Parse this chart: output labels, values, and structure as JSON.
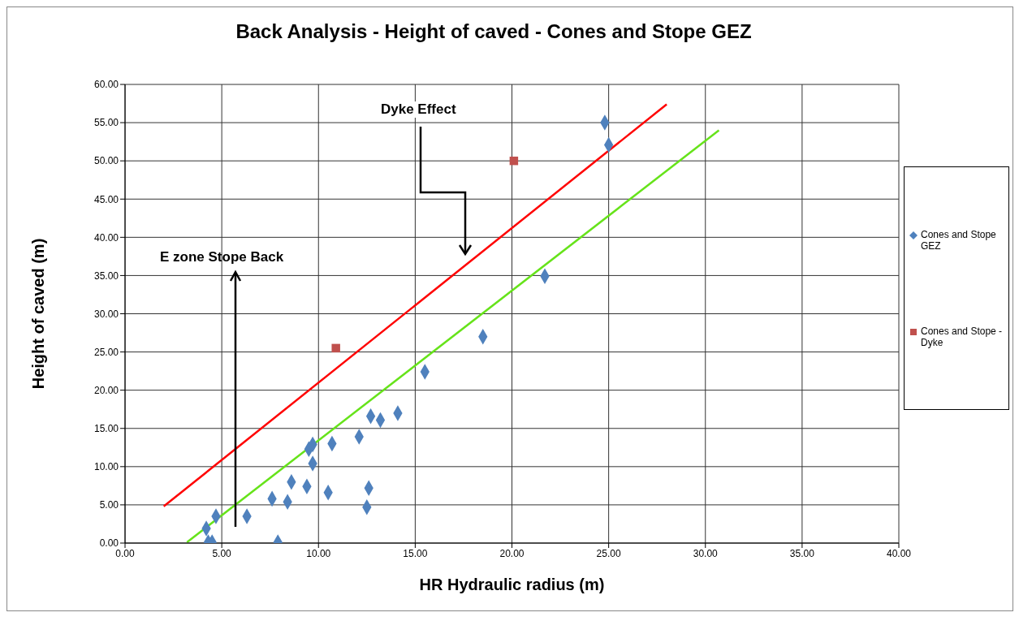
{
  "chart_data": {
    "type": "scatter",
    "title": "Back Analysis - Height of caved - Cones and Stope GEZ",
    "xlabel": "HR Hydraulic radius (m)",
    "ylabel": "Height of caved (m)",
    "annotations": [
      "Dyke Effect",
      "E zone Stope Back"
    ],
    "xlim": [
      0,
      40
    ],
    "ylim": [
      0,
      60
    ],
    "xticks": [
      {
        "value": 0,
        "label": "0.00"
      },
      {
        "value": 5,
        "label": "5.00"
      },
      {
        "value": 10,
        "label": "10.00"
      },
      {
        "value": 15,
        "label": "15.00"
      },
      {
        "value": 20,
        "label": "20.00"
      },
      {
        "value": 25,
        "label": "25.00"
      },
      {
        "value": 30,
        "label": "30.00"
      },
      {
        "value": 35,
        "label": "35.00"
      },
      {
        "value": 40,
        "label": "40.00"
      }
    ],
    "yticks": [
      {
        "value": 0,
        "label": "0.00"
      },
      {
        "value": 5,
        "label": "5.00"
      },
      {
        "value": 10,
        "label": "10.00"
      },
      {
        "value": 15,
        "label": "15.00"
      },
      {
        "value": 20,
        "label": "20.00"
      },
      {
        "value": 25,
        "label": "25.00"
      },
      {
        "value": 30,
        "label": "30.00"
      },
      {
        "value": 35,
        "label": "35.00"
      },
      {
        "value": 40,
        "label": "40.00"
      },
      {
        "value": 45,
        "label": "45.00"
      },
      {
        "value": 50,
        "label": "50.00"
      },
      {
        "value": 55,
        "label": "55.00"
      },
      {
        "value": 60,
        "label": "60.00"
      }
    ],
    "grid": true,
    "legend": "right",
    "series": [
      {
        "name": "Cones and Stope GEZ",
        "marker": "diamond",
        "color": "#4f81bd",
        "x": [
          4.2,
          4.3,
          4.5,
          4.7,
          6.3,
          7.6,
          8.6,
          8.4,
          9.4,
          9.5,
          9.7,
          9.7,
          7.9,
          10.5,
          10.7,
          12.1,
          12.5,
          12.6,
          12.7,
          13.2,
          14.1,
          15.5,
          18.5,
          21.7,
          24.8,
          25.0
        ],
        "values": [
          1.9,
          0.1,
          0.1,
          3.5,
          3.5,
          5.8,
          8.0,
          5.4,
          7.4,
          12.3,
          12.9,
          10.4,
          0.1,
          6.6,
          13.0,
          13.9,
          4.7,
          7.2,
          16.6,
          16.1,
          17.0,
          22.4,
          27.0,
          34.9,
          55.0,
          52.1
        ]
      },
      {
        "name": "Cones and Stope - Dyke",
        "marker": "square",
        "color": "#c0504d",
        "x": [
          10.9,
          20.1
        ],
        "values": [
          25.5,
          50.0
        ]
      },
      {
        "type": "line",
        "color": "#ff0000",
        "line_style": "solid",
        "marker": "none",
        "x": [
          2.0,
          28.0
        ],
        "values": [
          4.8,
          57.4
        ]
      },
      {
        "type": "line",
        "color": "#66e31a",
        "line_style": "solid",
        "marker": "none",
        "x": [
          3.2,
          30.7
        ],
        "values": [
          0.1,
          54.0
        ]
      }
    ]
  }
}
